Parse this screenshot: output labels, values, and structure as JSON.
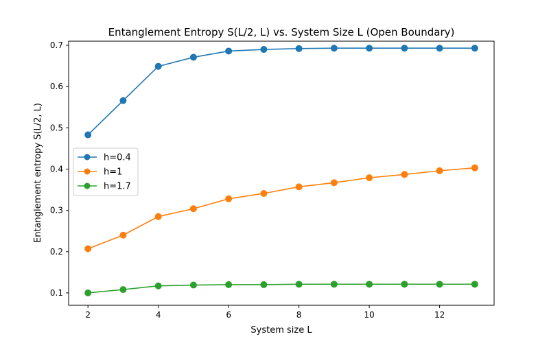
{
  "chart_data": {
    "type": "line",
    "title": "Entanglement Entropy S(L/2, L) vs. System Size L (Open Boundary)",
    "xlabel": "System size L",
    "ylabel": "Entanglement entropy S(L/2, L)",
    "xlim": [
      1.45,
      13.55
    ],
    "ylim": [
      0.07,
      0.71
    ],
    "xticks": [
      2,
      4,
      6,
      8,
      10,
      12
    ],
    "yticks": [
      0.1,
      0.2,
      0.3,
      0.4,
      0.5,
      0.6,
      0.7
    ],
    "grid": false,
    "legend_position": "center-left",
    "x": [
      2,
      3,
      4,
      5,
      6,
      7,
      8,
      9,
      10,
      11,
      12,
      13
    ],
    "series": [
      {
        "name": "h=0.4",
        "color": "#1f77b4",
        "marker": "circle",
        "values": [
          0.483,
          0.566,
          0.649,
          0.671,
          0.686,
          0.69,
          0.692,
          0.693,
          0.693,
          0.693,
          0.693,
          0.693
        ]
      },
      {
        "name": "h=1",
        "color": "#ff7f0e",
        "marker": "circle",
        "values": [
          0.207,
          0.24,
          0.285,
          0.304,
          0.328,
          0.341,
          0.357,
          0.367,
          0.379,
          0.387,
          0.396,
          0.403
        ]
      },
      {
        "name": "h=1.7",
        "color": "#2ca02c",
        "marker": "circle",
        "values": [
          0.1,
          0.108,
          0.117,
          0.119,
          0.12,
          0.12,
          0.121,
          0.121,
          0.121,
          0.121,
          0.121,
          0.121
        ]
      }
    ]
  }
}
